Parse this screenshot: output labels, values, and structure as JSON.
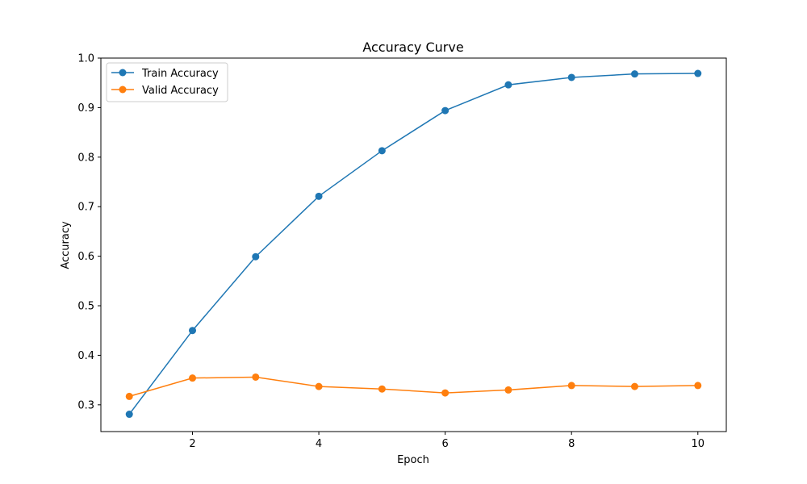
{
  "chart_data": {
    "type": "line",
    "title": "Accuracy Curve",
    "xlabel": "Epoch",
    "ylabel": "Accuracy",
    "xlim": [
      0.55,
      10.45
    ],
    "ylim": [
      0.246,
      1.0
    ],
    "xticks": [
      2,
      4,
      6,
      8,
      10
    ],
    "yticks": [
      0.3,
      0.4,
      0.5,
      0.6,
      0.7,
      0.8,
      0.9,
      1.0
    ],
    "xtick_labels": [
      "2",
      "4",
      "6",
      "8",
      "10"
    ],
    "ytick_labels": [
      "0.3",
      "0.4",
      "0.5",
      "0.6",
      "0.7",
      "0.8",
      "0.9",
      "1.0"
    ],
    "grid": false,
    "legend_position": "top-left",
    "x": [
      1,
      2,
      3,
      4,
      5,
      6,
      7,
      8,
      9,
      10
    ],
    "series": [
      {
        "name": "Train Accuracy",
        "color": "#1f77b4",
        "values": [
          0.281,
          0.45,
          0.599,
          0.721,
          0.813,
          0.894,
          0.946,
          0.961,
          0.968,
          0.969
        ]
      },
      {
        "name": "Valid Accuracy",
        "color": "#ff7f0e",
        "values": [
          0.317,
          0.354,
          0.356,
          0.337,
          0.332,
          0.324,
          0.33,
          0.339,
          0.337,
          0.339
        ]
      }
    ]
  }
}
